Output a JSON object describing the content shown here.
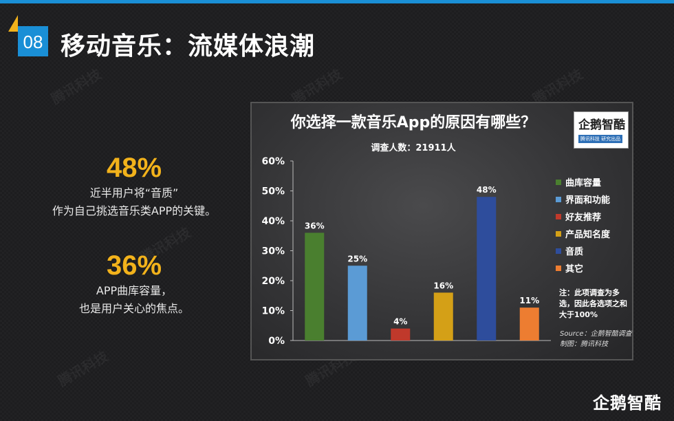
{
  "slide": {
    "page_number": "08",
    "title": "移动音乐：流媒体浪潮",
    "watermark": "腾讯科技",
    "brand": "企鹅智酷"
  },
  "stats": [
    {
      "value": "48%",
      "line1": "近半用户将“音质”",
      "line2": "作为自己挑选音乐类APP的关键。"
    },
    {
      "value": "36%",
      "line1": "APP曲库容量，",
      "line2": "也是用户关心的焦点。"
    }
  ],
  "chart_data": {
    "type": "bar",
    "title": "你选择一款音乐App的原因有哪些？",
    "subtitle": "调查人数：21911人",
    "categories": [
      "曲库容量",
      "界面和功能",
      "好友推荐",
      "产品知名度",
      "音质",
      "其它"
    ],
    "values": [
      36,
      25,
      4,
      16,
      48,
      11
    ],
    "value_labels": [
      "36%",
      "25%",
      "4%",
      "16%",
      "48%",
      "11%"
    ],
    "colors": [
      "#4a7f2f",
      "#5b9bd5",
      "#c0392b",
      "#d4a017",
      "#2e4d9c",
      "#ed7d31"
    ],
    "ylim": [
      0,
      60
    ],
    "yticks": [
      "0%",
      "10%",
      "20%",
      "30%",
      "40%",
      "50%",
      "60%"
    ],
    "grid": false,
    "legend_position": "right",
    "note": "注：此项调查为多选，因此各选项之和大于100%",
    "source": "Source：企鹅智酷调查",
    "credit": "制图：腾讯科技"
  },
  "chart_logo": {
    "name": "企鹅智酷",
    "tagline": "腾讯科技 研究出品"
  }
}
